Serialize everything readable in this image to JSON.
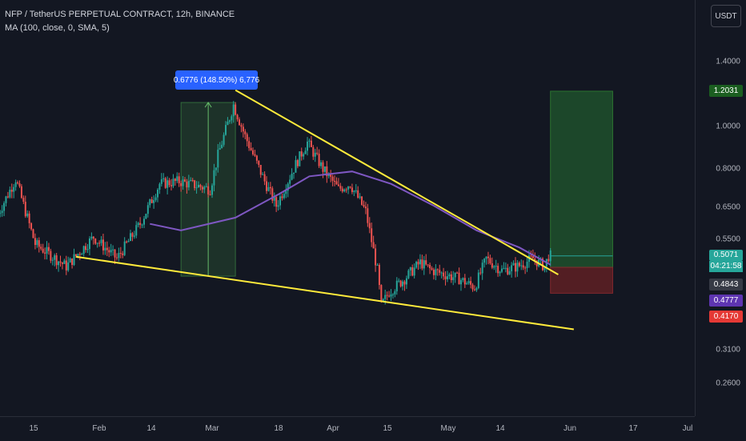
{
  "header": {
    "title": "NFP / TetherUS PERPETUAL CONTRACT, 12h, BINANCE",
    "indicator": "MA (100, close, 0, SMA, 5)",
    "currency": "USDT"
  },
  "measure_label": "0.6776 (148.50%) 6,776",
  "price_labels": {
    "target": "1.2031",
    "current": "0.5071",
    "countdown": "04:21:58",
    "ma": "0.4843",
    "entry": "0.4777",
    "stop": "0.4170"
  },
  "colors": {
    "background": "#131722",
    "up": "#26a69a",
    "down": "#ef5350",
    "ma_line": "#7e57c2",
    "trendline": "#ffeb3b",
    "target_zone": "#1e4d2b",
    "stop_zone": "#5a1f24",
    "measure": "#2962ff"
  },
  "chart_data": {
    "type": "candlestick",
    "title": "NFP / TetherUS PERPETUAL CONTRACT, 12h, BINANCE",
    "y_scale": "log",
    "ylim": [
      0.22,
      1.85
    ],
    "y_ticks": [
      "1.4000",
      "1.0000",
      "0.8000",
      "0.6500",
      "0.5500",
      "0.3100",
      "0.2600"
    ],
    "x_ticks": [
      "15",
      "Feb",
      "14",
      "Mar",
      "18",
      "Apr",
      "15",
      "May",
      "14",
      "Jun",
      "17",
      "Jul"
    ],
    "ohlc_anchors": [
      {
        "date": "Jan 06",
        "price": 0.62
      },
      {
        "date": "Jan 11",
        "price": 0.76
      },
      {
        "date": "Jan 16",
        "price": 0.54
      },
      {
        "date": "Jan 24",
        "price": 0.48
      },
      {
        "date": "Jan 31",
        "price": 0.56
      },
      {
        "date": "Feb 06",
        "price": 0.5
      },
      {
        "date": "Feb 12",
        "price": 0.6
      },
      {
        "date": "Feb 17",
        "price": 0.74
      },
      {
        "date": "Feb 22",
        "price": 0.75
      },
      {
        "date": "Mar 01",
        "price": 0.72
      },
      {
        "date": "Mar 03",
        "price": 0.86
      },
      {
        "date": "Mar 07",
        "price": 1.12
      },
      {
        "date": "Mar 10",
        "price": 0.95
      },
      {
        "date": "Mar 15",
        "price": 0.75
      },
      {
        "date": "Mar 18",
        "price": 0.66
      },
      {
        "date": "Mar 23",
        "price": 0.82
      },
      {
        "date": "Mar 26",
        "price": 0.92
      },
      {
        "date": "Mar 30",
        "price": 0.8
      },
      {
        "date": "Apr 03",
        "price": 0.72
      },
      {
        "date": "Apr 06",
        "price": 0.74
      },
      {
        "date": "Apr 10",
        "price": 0.64
      },
      {
        "date": "Apr 13",
        "price": 0.47
      },
      {
        "date": "Apr 14",
        "price": 0.39
      },
      {
        "date": "Apr 16",
        "price": 0.42
      },
      {
        "date": "Apr 20",
        "price": 0.45
      },
      {
        "date": "Apr 24",
        "price": 0.49
      },
      {
        "date": "Apr 27",
        "price": 0.47
      },
      {
        "date": "May 04",
        "price": 0.45
      },
      {
        "date": "May 08",
        "price": 0.43
      },
      {
        "date": "May 11",
        "price": 0.5
      },
      {
        "date": "May 15",
        "price": 0.47
      },
      {
        "date": "May 19",
        "price": 0.48
      },
      {
        "date": "May 23",
        "price": 0.5
      },
      {
        "date": "May 26",
        "price": 0.48
      },
      {
        "date": "May 27",
        "price": 0.5071
      }
    ],
    "ma_series": [
      {
        "date": "Feb 14",
        "price": 0.6
      },
      {
        "date": "Feb 22",
        "price": 0.58
      },
      {
        "date": "Mar 07",
        "price": 0.62
      },
      {
        "date": "Mar 18",
        "price": 0.7
      },
      {
        "date": "Mar 26",
        "price": 0.77
      },
      {
        "date": "Apr 06",
        "price": 0.79
      },
      {
        "date": "Apr 16",
        "price": 0.74
      },
      {
        "date": "Apr 27",
        "price": 0.66
      },
      {
        "date": "May 08",
        "price": 0.58
      },
      {
        "date": "May 19",
        "price": 0.53
      },
      {
        "date": "May 27",
        "price": 0.4843
      }
    ],
    "trendlines": [
      {
        "from": {
          "date": "Mar 07",
          "price": 1.21
        },
        "to": {
          "date": "May 29",
          "price": 0.46
        }
      },
      {
        "from": {
          "date": "Jan 26",
          "price": 0.505
        },
        "to": {
          "date": "Jun 02",
          "price": 0.345
        }
      }
    ],
    "position": {
      "entry": 0.4777,
      "target": 1.2031,
      "stop": 0.417,
      "from": "May 27",
      "to": "Jun 12"
    },
    "measure": {
      "from": {
        "date": "Feb 22",
        "price": 0.456
      },
      "to": {
        "date": "Mar 07",
        "price": 1.134
      },
      "label": "0.6776 (148.50%) 6,776"
    }
  }
}
